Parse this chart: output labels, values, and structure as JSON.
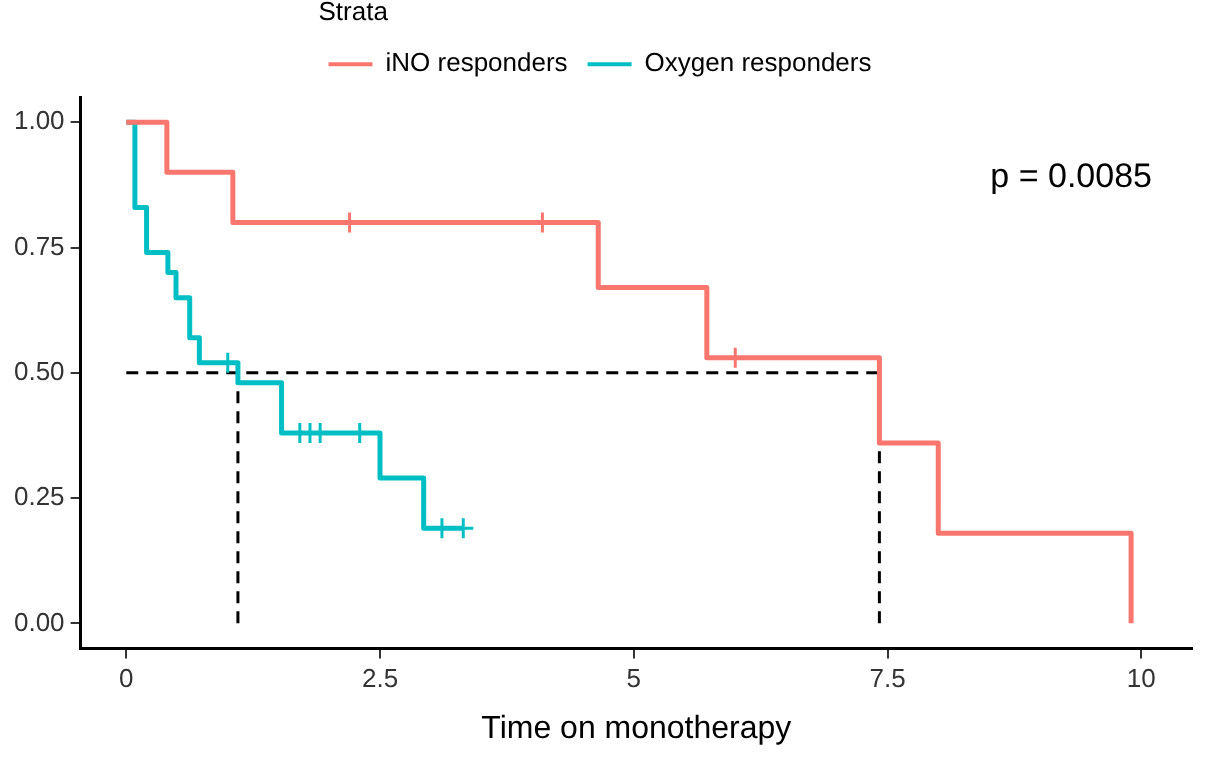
{
  "chart_data": {
    "type": "step",
    "xlabel": "Time on monotherapy",
    "legend_title": "Strata",
    "legend": "top",
    "grid": false,
    "xlim": [
      -0.45,
      10.5
    ],
    "xticks": [
      0,
      2.5,
      5,
      7.5,
      10
    ],
    "ylim": [
      -0.05,
      1.05
    ],
    "yticks": [
      {
        "value": 0,
        "label": "0.00"
      },
      {
        "value": 0.25,
        "label": "0.25"
      },
      {
        "value": 0.5,
        "label": "0.50"
      },
      {
        "value": 0.75,
        "label": "0.75"
      },
      {
        "value": 1,
        "label": "1.00"
      }
    ],
    "annotations": [
      "p = 0.0085"
    ],
    "series": [
      {
        "name": "iNO responders",
        "color": "#f8766d",
        "x": [
          0,
          0.4,
          1.05,
          4.65,
          5.72,
          7.42,
          8.0,
          9.9
        ],
        "values": [
          1,
          0.9,
          0.8,
          0.67,
          0.53,
          0.36,
          0.18,
          0
        ]
      },
      {
        "name": "Oxygen responders",
        "color": "#00bfc4",
        "x": [
          0,
          0.085,
          0.2,
          0.41,
          0.49,
          0.625,
          0.72,
          1.1,
          1.53,
          2.5,
          2.93,
          3.32
        ],
        "values": [
          1,
          0.83,
          0.74,
          0.7,
          0.65,
          0.57,
          0.52,
          0.48,
          0.38,
          0.29,
          0.19,
          0.19
        ]
      },
      {
        "type": "scatter",
        "marker": "cross",
        "color": "#f8766d",
        "x": [
          2.2,
          4.1,
          6.0
        ],
        "values": [
          0.8,
          0.8,
          0.53
        ]
      },
      {
        "type": "scatter",
        "marker": "cross",
        "color": "#00bfc4",
        "x": [
          1.0,
          1.71,
          1.81,
          1.91,
          2.3,
          3.11,
          3.32
        ],
        "values": [
          0.52,
          0.38,
          0.38,
          0.38,
          0.38,
          0.19,
          0.19
        ]
      },
      {
        "type": "line",
        "line_style": "dashed",
        "color": "#000000",
        "x": [
          0,
          7.42
        ],
        "values": [
          0.5,
          0.5
        ]
      },
      {
        "type": "line",
        "line_style": "dashed",
        "color": "#000000",
        "x": [
          1.1,
          1.1
        ],
        "values": [
          0,
          0.5
        ]
      },
      {
        "type": "line",
        "line_style": "dashed",
        "color": "#000000",
        "x": [
          7.42,
          7.42
        ],
        "values": [
          0,
          0.5
        ]
      }
    ]
  }
}
